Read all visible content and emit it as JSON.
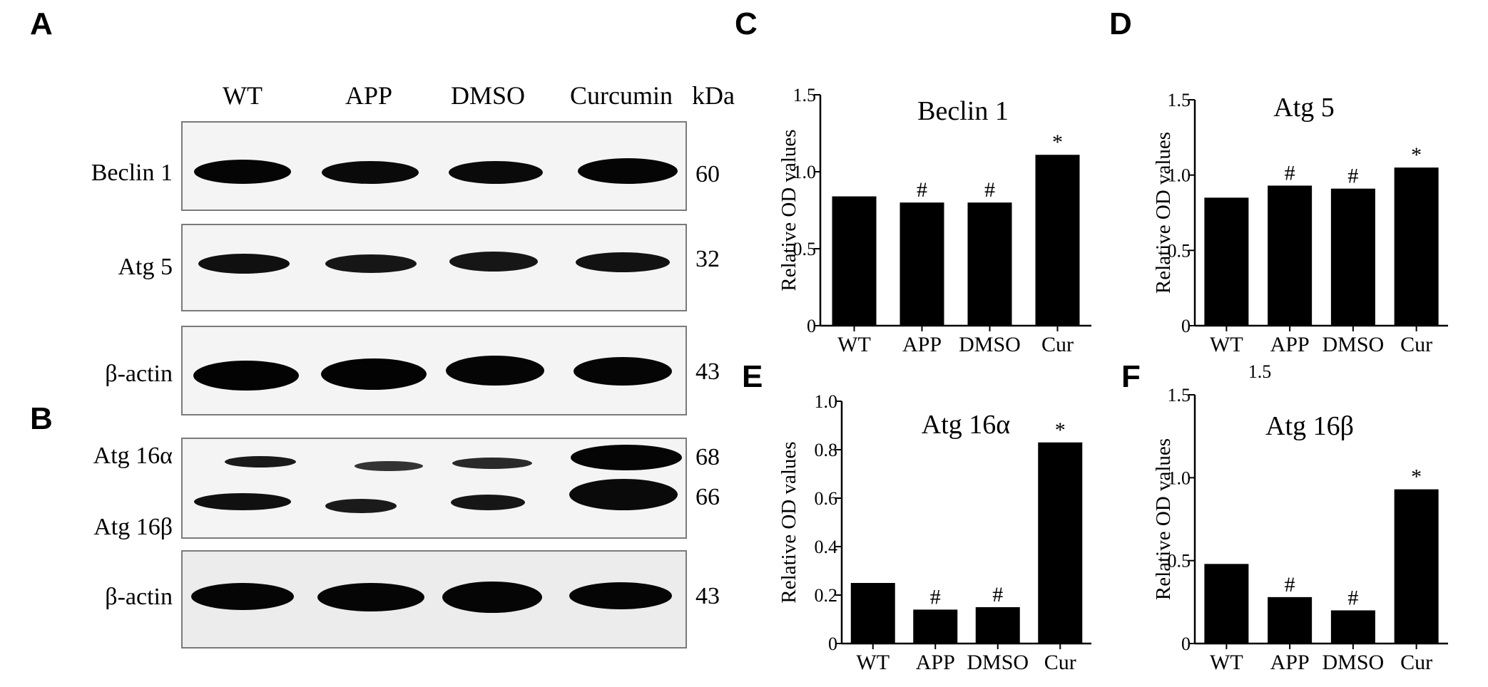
{
  "panel_letters": {
    "A": "A",
    "B": "B",
    "C": "C",
    "D": "D",
    "E": "E",
    "F": "F"
  },
  "blot": {
    "lanes": [
      "WT",
      "APP",
      "DMSO",
      "Curcumin"
    ],
    "kda_header": "kDa",
    "rows": [
      {
        "label": "Beclin 1",
        "kda": "60"
      },
      {
        "label": "Atg 5",
        "kda": "32"
      },
      {
        "label": "β-actin",
        "kda": "43"
      },
      {
        "label": "Atg 16α",
        "label2": "Atg 16β",
        "kda": "68",
        "kda2": "66"
      },
      {
        "label": "β-actin",
        "kda": "43"
      }
    ]
  },
  "stray_tick": "1.5",
  "chart_data": [
    {
      "panel": "C",
      "type": "bar",
      "title": "Beclin 1",
      "ylabel": "Relative OD values",
      "xlabel": "",
      "categories": [
        "WT",
        "APP",
        "DMSO",
        "Cur"
      ],
      "values": [
        0.84,
        0.8,
        0.8,
        1.11
      ],
      "annotations": [
        "",
        "#",
        "#",
        "*"
      ],
      "ylim": [
        0,
        1.5
      ],
      "yticks": [
        "0",
        "0.5",
        "1.0",
        "1.5"
      ],
      "ytick_values": [
        0,
        0.5,
        1.0,
        1.5
      ],
      "grid": false
    },
    {
      "panel": "D",
      "type": "bar",
      "title": "Atg 5",
      "ylabel": "Relative OD values",
      "xlabel": "",
      "categories": [
        "WT",
        "APP",
        "DMSO",
        "Cur"
      ],
      "values": [
        0.85,
        0.93,
        0.91,
        1.05
      ],
      "annotations": [
        "",
        "#",
        "#",
        "*"
      ],
      "ylim": [
        0,
        1.5
      ],
      "yticks": [
        "0",
        "0.5",
        "1.0",
        "1.5"
      ],
      "ytick_values": [
        0,
        0.5,
        1.0,
        1.5
      ],
      "grid": false
    },
    {
      "panel": "E",
      "type": "bar",
      "title": "Atg 16α",
      "ylabel": "Relative OD values",
      "xlabel": "",
      "categories": [
        "WT",
        "APP",
        "DMSO",
        "Cur"
      ],
      "values": [
        0.25,
        0.14,
        0.15,
        0.83
      ],
      "annotations": [
        "",
        "#",
        "#",
        "*"
      ],
      "ylim": [
        0,
        1.0
      ],
      "yticks": [
        "0",
        "0.2",
        "0.4",
        "0.6",
        "0.8",
        "1.0"
      ],
      "ytick_values": [
        0,
        0.2,
        0.4,
        0.6,
        0.8,
        1.0
      ],
      "grid": false
    },
    {
      "panel": "F",
      "type": "bar",
      "title": "Atg 16β",
      "ylabel": "Relative OD values",
      "xlabel": "",
      "categories": [
        "WT",
        "APP",
        "DMSO",
        "Cur"
      ],
      "values": [
        0.48,
        0.28,
        0.2,
        0.93
      ],
      "annotations": [
        "",
        "#",
        "#",
        "*"
      ],
      "ylim": [
        0,
        1.5
      ],
      "yticks": [
        "0",
        "0.5",
        "1.0",
        "1.5"
      ],
      "ytick_values": [
        0,
        0.5,
        1.0,
        1.5
      ],
      "grid": false
    }
  ]
}
